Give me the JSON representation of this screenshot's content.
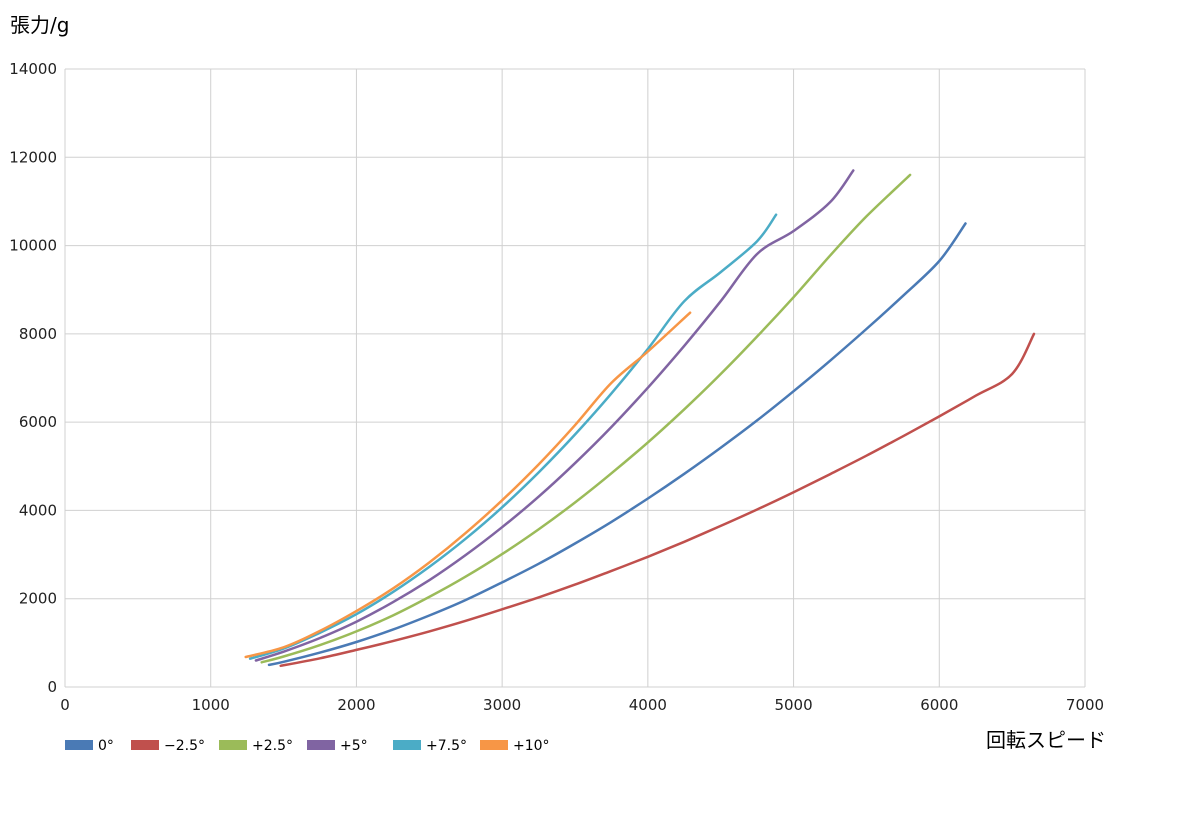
{
  "chart_data": {
    "type": "line",
    "title": "",
    "xlabel": "回転スピード",
    "ylabel": "張力/g",
    "xlim": [
      0,
      7000
    ],
    "ylim": [
      0,
      14000
    ],
    "x_ticks": [
      0,
      1000,
      2000,
      3000,
      4000,
      5000,
      6000,
      7000
    ],
    "y_ticks": [
      0,
      2000,
      4000,
      6000,
      8000,
      10000,
      12000,
      14000
    ],
    "x_tick_labels": [
      "0",
      "1000",
      "2000",
      "3000",
      "4000",
      "5000",
      "6000",
      "7000"
    ],
    "y_tick_labels": [
      "0",
      "2000",
      "4000",
      "6000",
      "8000",
      "10000",
      "12000",
      "14000"
    ],
    "grid": true,
    "legend_position": "bottom-left",
    "series": [
      {
        "name": "0°",
        "color": "#4a7ab5",
        "x": [
          1400,
          1500,
          1750,
          2000,
          2250,
          2500,
          2750,
          3000,
          3250,
          3500,
          3750,
          4000,
          4250,
          4500,
          4750,
          5000,
          5250,
          5500,
          5750,
          6000,
          6180
        ],
        "y": [
          500,
          570,
          780,
          1020,
          1300,
          1620,
          1970,
          2370,
          2790,
          3250,
          3740,
          4270,
          4830,
          5420,
          6040,
          6700,
          7390,
          8110,
          8860,
          9650,
          10500
        ]
      },
      {
        "name": "−2.5°",
        "color": "#c0504d",
        "x": [
          1480,
          1750,
          2000,
          2250,
          2500,
          2750,
          3000,
          3250,
          3500,
          3750,
          4000,
          4250,
          4500,
          4750,
          5000,
          5250,
          5500,
          5750,
          6000,
          6250,
          6500,
          6650
        ],
        "y": [
          480,
          650,
          840,
          1040,
          1260,
          1500,
          1760,
          2030,
          2320,
          2630,
          2950,
          3290,
          3650,
          4020,
          4410,
          4820,
          5240,
          5680,
          6130,
          6600,
          7090,
          8000
        ]
      },
      {
        "name": "+2.5°",
        "color": "#9bbb59",
        "x": [
          1350,
          1500,
          1750,
          2000,
          2250,
          2500,
          2750,
          3000,
          3250,
          3500,
          3750,
          4000,
          4250,
          4500,
          4750,
          5000,
          5250,
          5500,
          5800
        ],
        "y": [
          560,
          690,
          950,
          1260,
          1620,
          2040,
          2500,
          3010,
          3570,
          4180,
          4840,
          5540,
          6290,
          7090,
          7940,
          8830,
          9770,
          10660,
          11600
        ]
      },
      {
        "name": "+5°",
        "color": "#8064a2",
        "x": [
          1310,
          1500,
          1750,
          2000,
          2250,
          2500,
          2750,
          3000,
          3250,
          3500,
          3750,
          4000,
          4250,
          4500,
          4750,
          5000,
          5250,
          5410
        ],
        "y": [
          600,
          800,
          1110,
          1480,
          1920,
          2420,
          2990,
          3620,
          4310,
          5070,
          5890,
          6780,
          7730,
          8740,
          9810,
          10330,
          10980,
          11700
        ]
      },
      {
        "name": "+7.5°",
        "color": "#4bacc6",
        "x": [
          1270,
          1500,
          1750,
          2000,
          2250,
          2500,
          2750,
          3000,
          3250,
          3500,
          3750,
          4000,
          4250,
          4500,
          4750,
          4880
        ],
        "y": [
          640,
          870,
          1230,
          1650,
          2150,
          2720,
          3360,
          4070,
          4860,
          5720,
          6650,
          7660,
          8740,
          9400,
          10100,
          10700
        ]
      },
      {
        "name": "+10°",
        "color": "#f79646",
        "x": [
          1240,
          1500,
          1750,
          2000,
          2250,
          2500,
          2750,
          3000,
          3250,
          3500,
          3750,
          4000,
          4290
        ],
        "y": [
          680,
          900,
          1270,
          1720,
          2230,
          2820,
          3490,
          4230,
          5040,
          5930,
          6890,
          7600,
          8480
        ]
      }
    ]
  }
}
